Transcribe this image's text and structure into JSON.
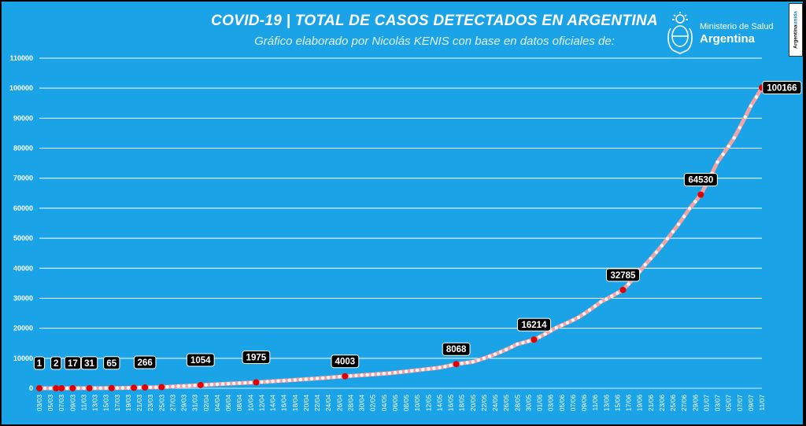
{
  "header": {
    "title": "COVID-19  |  TOTAL DE CASOS DETECTADOS EN ARGENTINA",
    "subtitle": "Gráfico elaborado por Nicolás KENIS con base en datos oficiales de:"
  },
  "logo": {
    "icon": "argentina-coat-of-arms-icon",
    "ministry_line": "Ministerio de Salud",
    "country_line": "Argentina"
  },
  "badge": {
    "text_a": "Argentina",
    "text_b": "unida"
  },
  "colors": {
    "background": "#1aa3e6",
    "gridline": "#ffffff",
    "line": "#f4a3a3",
    "marker": "#e00000",
    "label_box": "#000000",
    "label_text": "#ffffff"
  },
  "chart_data": {
    "type": "line",
    "title": "COVID-19  |  TOTAL DE CASOS DETECTADOS EN ARGENTINA",
    "subtitle": "Gráfico elaborado por Nicolás KENIS con base en datos oficiales de:",
    "xlabel": "",
    "ylabel": "",
    "ylim": [
      0,
      110000
    ],
    "yticks": [
      0,
      10000,
      20000,
      30000,
      40000,
      50000,
      60000,
      70000,
      80000,
      90000,
      100000,
      110000
    ],
    "grid": true,
    "x_start": "03/03",
    "x_end": "11/07",
    "x_tick_labels": [
      "03/03",
      "05/03",
      "07/03",
      "09/03",
      "11/03",
      "13/03",
      "15/03",
      "17/03",
      "19/03",
      "21/03",
      "23/03",
      "25/03",
      "27/03",
      "29/03",
      "31/03",
      "02/04",
      "04/04",
      "06/04",
      "08/04",
      "10/04",
      "12/04",
      "14/04",
      "16/04",
      "18/04",
      "20/04",
      "22/04",
      "24/04",
      "26/04",
      "28/04",
      "30/04",
      "02/05",
      "04/05",
      "06/05",
      "08/05",
      "10/05",
      "12/05",
      "14/05",
      "16/05",
      "18/05",
      "20/05",
      "22/05",
      "24/05",
      "26/05",
      "28/05",
      "30/05",
      "01/06",
      "03/06",
      "05/06",
      "07/06",
      "09/06",
      "11/06",
      "13/06",
      "15/06",
      "17/06",
      "19/06",
      "21/06",
      "23/06",
      "25/06",
      "27/06",
      "29/06",
      "01/07",
      "03/07",
      "05/07",
      "07/07",
      "09/07",
      "11/07"
    ],
    "series": [
      {
        "points": [
          {
            "x": "03/03",
            "y": 1
          },
          {
            "x": "06/03",
            "y": 2
          },
          {
            "x": "09/03",
            "y": 17
          },
          {
            "x": "12/03",
            "y": 31
          },
          {
            "x": "15/03",
            "y": 56
          },
          {
            "x": "16/03",
            "y": 65
          },
          {
            "x": "20/03",
            "y": 158
          },
          {
            "x": "22/03",
            "y": 266
          },
          {
            "x": "25/03",
            "y": 387
          },
          {
            "x": "28/03",
            "y": 690
          },
          {
            "x": "01/04",
            "y": 1054
          },
          {
            "x": "05/04",
            "y": 1451
          },
          {
            "x": "09/04",
            "y": 1795
          },
          {
            "x": "11/04",
            "y": 1975
          },
          {
            "x": "15/04",
            "y": 2443
          },
          {
            "x": "20/04",
            "y": 3031
          },
          {
            "x": "27/04",
            "y": 4003
          },
          {
            "x": "05/05",
            "y": 5020
          },
          {
            "x": "10/05",
            "y": 6034
          },
          {
            "x": "14/05",
            "y": 6879
          },
          {
            "x": "17/05",
            "y": 8068
          },
          {
            "x": "20/05",
            "y": 8809
          },
          {
            "x": "24/05",
            "y": 11353
          },
          {
            "x": "28/05",
            "y": 14702
          },
          {
            "x": "31/05",
            "y": 16214
          },
          {
            "x": "04/06",
            "y": 20197
          },
          {
            "x": "08/06",
            "y": 23620
          },
          {
            "x": "12/06",
            "y": 28764
          },
          {
            "x": "16/06",
            "y": 32785
          },
          {
            "x": "20/06",
            "y": 41204
          },
          {
            "x": "24/06",
            "y": 49851
          },
          {
            "x": "28/06",
            "y": 59933
          },
          {
            "x": "30/06",
            "y": 64530
          },
          {
            "x": "03/07",
            "y": 75376
          },
          {
            "x": "06/07",
            "y": 83426
          },
          {
            "x": "09/07",
            "y": 94060
          },
          {
            "x": "11/07",
            "y": 100166
          }
        ]
      }
    ],
    "data_labels": [
      {
        "x": "03/03",
        "y": 1,
        "text": "1"
      },
      {
        "x": "06/03",
        "y": 2,
        "text": "2"
      },
      {
        "x": "09/03",
        "y": 17,
        "text": "17"
      },
      {
        "x": "12/03",
        "y": 31,
        "text": "31"
      },
      {
        "x": "16/03",
        "y": 65,
        "text": "65"
      },
      {
        "x": "22/03",
        "y": 266,
        "text": "266"
      },
      {
        "x": "01/04",
        "y": 1054,
        "text": "1054"
      },
      {
        "x": "11/04",
        "y": 1975,
        "text": "1975"
      },
      {
        "x": "27/04",
        "y": 4003,
        "text": "4003"
      },
      {
        "x": "17/05",
        "y": 8068,
        "text": "8068"
      },
      {
        "x": "31/05",
        "y": 16214,
        "text": "16214"
      },
      {
        "x": "16/06",
        "y": 32785,
        "text": "32785"
      },
      {
        "x": "30/06",
        "y": 64530,
        "text": "64530"
      },
      {
        "x": "11/07",
        "y": 100166,
        "text": "100166"
      }
    ],
    "markers": [
      {
        "x": "03/03",
        "y": 1
      },
      {
        "x": "06/03",
        "y": 2
      },
      {
        "x": "07/03",
        "y": 12
      },
      {
        "x": "09/03",
        "y": 17
      },
      {
        "x": "12/03",
        "y": 31
      },
      {
        "x": "16/03",
        "y": 65
      },
      {
        "x": "20/03",
        "y": 158
      },
      {
        "x": "22/03",
        "y": 266
      },
      {
        "x": "25/03",
        "y": 387
      },
      {
        "x": "01/04",
        "y": 1054
      },
      {
        "x": "11/04",
        "y": 1975
      },
      {
        "x": "27/04",
        "y": 4003
      },
      {
        "x": "17/05",
        "y": 8068
      },
      {
        "x": "31/05",
        "y": 16214
      },
      {
        "x": "16/06",
        "y": 32785
      },
      {
        "x": "30/06",
        "y": 64530
      },
      {
        "x": "11/07",
        "y": 100166
      }
    ]
  }
}
